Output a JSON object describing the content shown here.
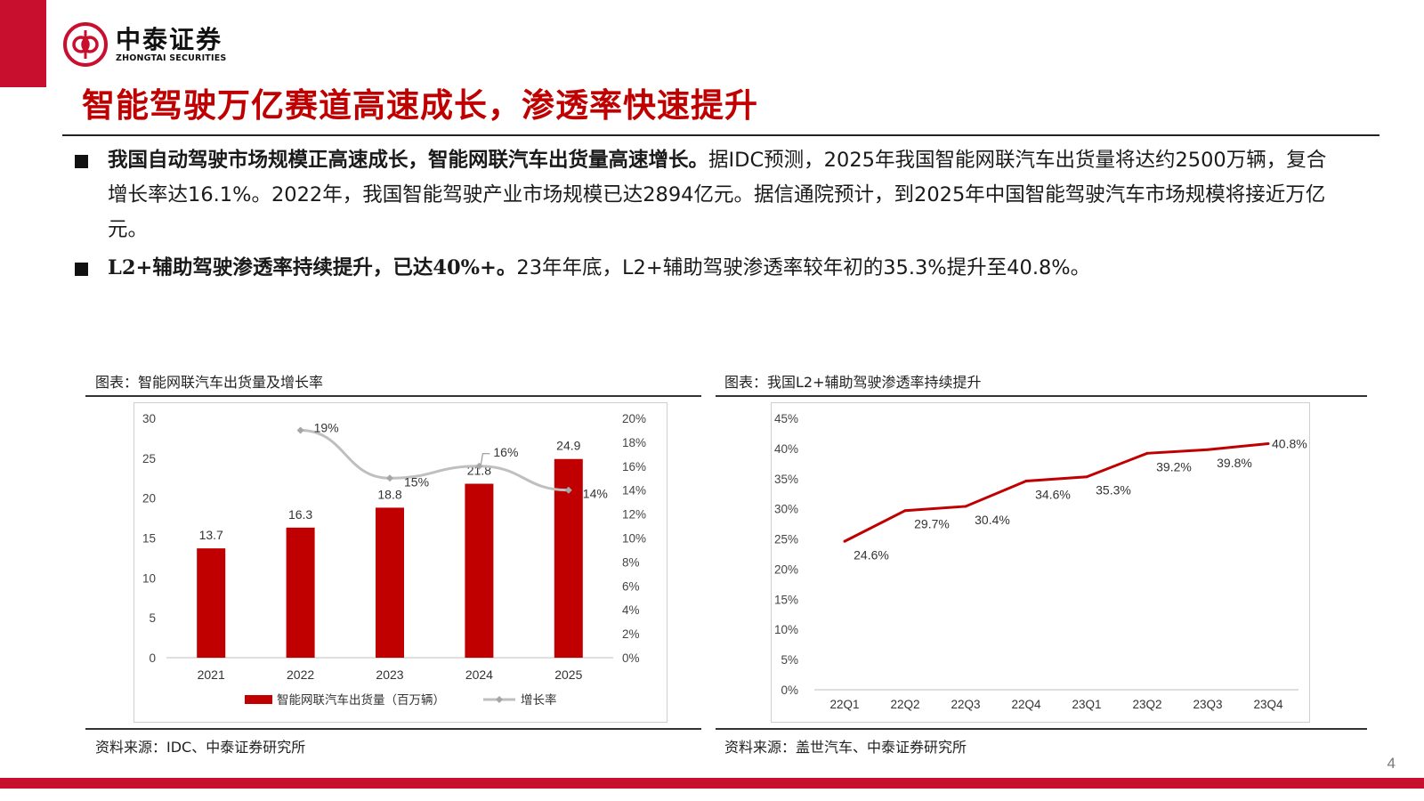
{
  "colors": {
    "brand": "#c00000",
    "bar": "#c00000",
    "growth_line": "#bfbfbf",
    "penetration_line": "#c00000"
  },
  "logo": {
    "cn": "中泰证券",
    "en": "ZHONGTAI SECURITIES"
  },
  "title": "智能驾驶万亿赛道高速成长，渗透率快速提升",
  "bullets": [
    {
      "bold": "我国自动驾驶市场规模正高速成长，智能网联汽车出货量高速增长。",
      "text": "据IDC预测，2025年我国智能网联汽车出货量将达约2500万辆，复合增长率达16.1%。2022年，我国智能驾驶产业市场规模已达2894亿元。据信通院预计，到2025年中国智能驾驶汽车市场规模将接近万亿元。"
    },
    {
      "bold": "L2+辅助驾驶渗透率持续提升，已达40%+。",
      "text": "23年年底，L2+辅助驾驶渗透率较年初的35.3%提升至40.8%。"
    }
  ],
  "chart1": {
    "caption": "图表：智能网联汽车出货量及增长率",
    "source": "资料来源：IDC、中泰证券研究所"
  },
  "chart2": {
    "caption": "图表：我国L2+辅助驾驶渗透率持续提升",
    "source": "资料来源：盖世汽车、中泰证券研究所"
  },
  "page_number": "4",
  "chart_data": [
    {
      "type": "bar",
      "title": "智能网联汽车出货量及增长率",
      "categories": [
        "2021",
        "2022",
        "2023",
        "2024",
        "2025"
      ],
      "series": [
        {
          "name": "智能网联汽车出货量（百万辆）",
          "type": "bar",
          "axis": "left",
          "values": [
            13.7,
            16.3,
            18.8,
            21.8,
            24.9
          ],
          "labels": [
            "13.7",
            "16.3",
            "18.8",
            "21.8",
            "24.9"
          ]
        },
        {
          "name": "增长率",
          "type": "line",
          "axis": "right",
          "values": [
            null,
            19,
            15,
            16,
            14
          ],
          "labels": [
            "",
            "19%",
            "15%",
            "16%",
            "14%"
          ]
        }
      ],
      "ylim": [
        0,
        30
      ],
      "y_ticks": [
        "0",
        "5",
        "10",
        "15",
        "20",
        "25",
        "30"
      ],
      "y2lim": [
        0,
        20
      ],
      "y2_ticks": [
        "0%",
        "2%",
        "4%",
        "6%",
        "8%",
        "10%",
        "12%",
        "14%",
        "16%",
        "18%",
        "20%"
      ],
      "legend": "bottom",
      "grid": false
    },
    {
      "type": "line",
      "title": "我国L2+辅助驾驶渗透率持续提升",
      "categories": [
        "22Q1",
        "22Q2",
        "22Q3",
        "22Q4",
        "23Q1",
        "23Q2",
        "23Q3",
        "23Q4"
      ],
      "series": [
        {
          "values": [
            24.6,
            29.7,
            30.4,
            34.6,
            35.3,
            39.2,
            39.8,
            40.8
          ],
          "labels": [
            "24.6%",
            "29.7%",
            "30.4%",
            "34.6%",
            "35.3%",
            "39.2%",
            "39.8%",
            "40.8%"
          ]
        }
      ],
      "ylim": [
        0,
        45
      ],
      "y_ticks": [
        "0%",
        "5%",
        "10%",
        "15%",
        "20%",
        "25%",
        "30%",
        "35%",
        "40%",
        "45%"
      ],
      "grid": false
    }
  ]
}
